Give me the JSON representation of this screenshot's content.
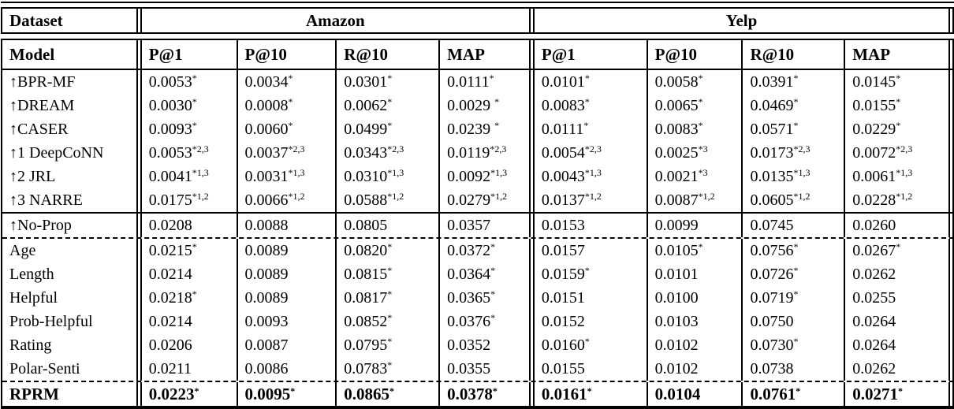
{
  "colors": {
    "text": "#000000",
    "background": "#ffffff",
    "rules": "#000000"
  },
  "table": {
    "header": {
      "dataset": "Dataset",
      "model": "Model",
      "amazon": "Amazon",
      "yelp": "Yelp",
      "metrics": [
        "P@1",
        "P@10",
        "R@10",
        "MAP",
        "P@1",
        "P@10",
        "R@10",
        "MAP"
      ]
    },
    "rows": [
      {
        "model": "↑BPR-MF",
        "values": [
          "0.0053*",
          "0.0034*",
          "0.0301*",
          "0.0111*",
          "0.0101*",
          "0.0058*",
          "0.0391*",
          "0.0145*"
        ]
      },
      {
        "model": "↑DREAM",
        "values": [
          "0.0030*",
          "0.0008*",
          "0.0062*",
          "0.0029 *",
          "0.0083*",
          "0.0065*",
          "0.0469*",
          "0.0155*"
        ]
      },
      {
        "model": "↑CASER",
        "values": [
          "0.0093*",
          "0.0060*",
          "0.0499*",
          "0.0239 *",
          "0.0111*",
          "0.0083*",
          "0.0571*",
          "0.0229*"
        ]
      },
      {
        "model": "↑1 DeepCoNN",
        "values": [
          "0.0053*2,3",
          "0.0037*2,3",
          "0.0343*2,3",
          "0.0119*2,3",
          "0.0054*2,3",
          "0.0025*3",
          "0.0173*2,3",
          "0.0072*2,3"
        ]
      },
      {
        "model": "↑2 JRL",
        "values": [
          "0.0041*1,3",
          "0.0031*1,3",
          "0.0310*1,3",
          "0.0092*1,3",
          "0.0043*1,3",
          "0.0021*3",
          "0.0135*1,3",
          "0.0061*1,3"
        ]
      },
      {
        "model": "↑3 NARRE",
        "values": [
          "0.0175*1,2",
          "0.0066*1,2",
          "0.0588*1,2",
          "0.0279*1,2",
          "0.0137*1,2",
          "0.0087*1,2",
          "0.0605*1,2",
          "0.0228*1,2"
        ],
        "rule_below": "solid"
      },
      {
        "model": "↑No-Prop",
        "values": [
          "0.0208",
          "0.0088",
          "0.0805",
          "0.0357",
          "0.0153",
          "0.0099",
          "0.0745",
          "0.0260"
        ],
        "rule_below": "dashed"
      },
      {
        "model": "Age",
        "values": [
          "0.0215*",
          "0.0089",
          "0.0820*",
          "0.0372*",
          "0.0157",
          "0.0105*",
          "0.0756*",
          "0.0267*"
        ]
      },
      {
        "model": "Length",
        "values": [
          "0.0214",
          "0.0089",
          "0.0815*",
          "0.0364*",
          "0.0159*",
          "0.0101",
          "0.0726*",
          "0.0262"
        ]
      },
      {
        "model": "Helpful",
        "values": [
          "0.0218*",
          "0.0089",
          "0.0817*",
          "0.0365*",
          "0.0151",
          "0.0100",
          "0.0719*",
          "0.0255"
        ]
      },
      {
        "model": "Prob-Helpful",
        "values": [
          "0.0214",
          "0.0093",
          "0.0852*",
          "0.0376*",
          "0.0152",
          "0.0103",
          "0.0750",
          "0.0264"
        ]
      },
      {
        "model": "Rating",
        "values": [
          "0.0206",
          "0.0087",
          "0.0795*",
          "0.0352",
          "0.0160*",
          "0.0102",
          "0.0730*",
          "0.0264"
        ]
      },
      {
        "model": "Polar-Senti",
        "values": [
          "0.0211",
          "0.0086",
          "0.0783*",
          "0.0355",
          "0.0155",
          "0.0102",
          "0.0738",
          "0.0262"
        ],
        "rule_below": "dashed"
      },
      {
        "model": "RPRM",
        "bold": true,
        "values": [
          "0.0223*",
          "0.0095*",
          "0.0865*",
          "0.0378*",
          "0.0161*",
          "0.0104",
          "0.0761*",
          "0.0271*"
        ]
      }
    ]
  }
}
